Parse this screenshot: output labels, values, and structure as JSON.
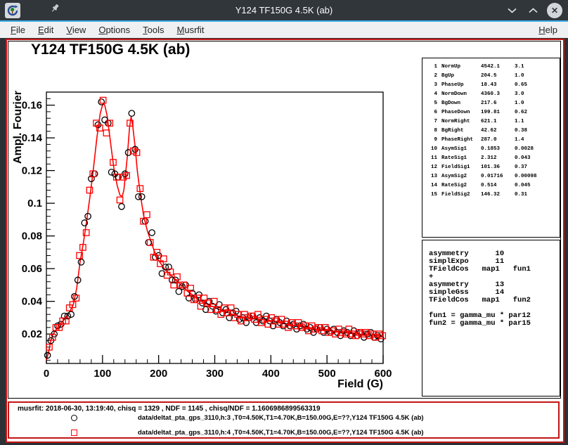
{
  "titlebar": {
    "title": "Y124 TF150G 4.5K (ab)",
    "app_icon": "root-logo-icon",
    "pin_icon": "pin-icon",
    "buttons": {
      "minimize": "v",
      "maximize": "^",
      "close": "✕"
    }
  },
  "menubar": {
    "items": [
      "File",
      "Edit",
      "View",
      "Options",
      "Tools",
      "Musrfit"
    ],
    "help_label": "Help"
  },
  "colors": {
    "pad_highlight": "#c31414",
    "series1": "#000000",
    "series2": "#ff0000",
    "titlebar_bg": "#31363b",
    "menubar_bg": "#eff0f1",
    "accent_line": "#3daee9"
  },
  "param_table": {
    "rows": [
      [
        "1",
        "NormUp",
        "4542.1",
        "3.1"
      ],
      [
        "2",
        "BgUp",
        "204.5",
        "1.0"
      ],
      [
        "3",
        "PhaseUp",
        "18.43",
        "0.65"
      ],
      [
        "4",
        "NormDown",
        "4360.3",
        "3.0"
      ],
      [
        "5",
        "BgDown",
        "217.6",
        "1.0"
      ],
      [
        "6",
        "PhaseDown",
        "199.81",
        "0.62"
      ],
      [
        "7",
        "NormRight",
        "621.1",
        "1.1"
      ],
      [
        "8",
        "BgRight",
        "42.62",
        "0.38"
      ],
      [
        "9",
        "PhaseRight",
        "287.0",
        "1.4"
      ],
      [
        "10",
        "AsymSig1",
        "0.1853",
        "0.0028"
      ],
      [
        "11",
        "RateSig1",
        "2.312",
        "0.043"
      ],
      [
        "12",
        "FieldSig1",
        "101.36",
        "0.37"
      ],
      [
        "13",
        "AsymSig2",
        "0.01716",
        "0.00098"
      ],
      [
        "14",
        "RateSig2",
        "0.514",
        "0.045"
      ],
      [
        "15",
        "FieldSig2",
        "146.32",
        "0.31"
      ]
    ]
  },
  "theory_block": {
    "lines": [
      "asymmetry      10",
      "simplExpo      11",
      "TFieldCos   map1   fun1",
      "+",
      "asymmetry      13",
      "simpleGss      14",
      "TFieldCos   map1   fun2",
      "",
      "fun1 = gamma_mu * par12",
      "fun2 = gamma_mu * par15"
    ]
  },
  "footer": {
    "info": "musrfit: 2018-06-30, 13:19:40, chisq = 1329 , NDF = 1145 , chisq/NDF = 1.1606986899563319",
    "legend": [
      {
        "marker": "circle",
        "color": "#000000",
        "label": "data/deltat_pta_gps_3110,h:3 ,T0=4.50K,T1=4.70K,B=150.00G,E=??,Y124 TF150G 4.5K (ab)"
      },
      {
        "marker": "square",
        "color": "#ff0000",
        "label": "data/deltat_pta_gps_3110,h:4 ,T0=4.50K,T1=4.70K,B=150.00G,E=??,Y124 TF150G 4.5K (ab)"
      }
    ]
  },
  "chart_data": {
    "type": "scatter",
    "title": "Y124 TF150G 4.5K (ab)",
    "xlabel": "Field (G)",
    "ylabel": "Ampl. Fourier",
    "xlim": [
      0,
      600
    ],
    "ylim": [
      0.002,
      0.168
    ],
    "x_ticks": [
      0,
      100,
      200,
      300,
      400,
      500,
      600
    ],
    "x_minor_step": 20,
    "y_ticks": [
      [
        0.02,
        "0.02"
      ],
      [
        0.04,
        "0.04"
      ],
      [
        0.06,
        "0.06"
      ],
      [
        0.08,
        "0.08"
      ],
      [
        0.1,
        "0.1"
      ],
      [
        0.12,
        "0.12"
      ],
      [
        0.14,
        "0.14"
      ],
      [
        0.16,
        "0.16"
      ]
    ],
    "y_minor_step": 0.004,
    "grid": false,
    "legend_position": "footer-pad",
    "fit_curve": [
      [
        0,
        0.004
      ],
      [
        4,
        0.009
      ],
      [
        8,
        0.016
      ],
      [
        12,
        0.02
      ],
      [
        18,
        0.023
      ],
      [
        24,
        0.026
      ],
      [
        30,
        0.028
      ],
      [
        36,
        0.031
      ],
      [
        42,
        0.034
      ],
      [
        48,
        0.038
      ],
      [
        54,
        0.048
      ],
      [
        60,
        0.064
      ],
      [
        66,
        0.076
      ],
      [
        72,
        0.09
      ],
      [
        78,
        0.105
      ],
      [
        84,
        0.122
      ],
      [
        90,
        0.14
      ],
      [
        96,
        0.155
      ],
      [
        100,
        0.16
      ],
      [
        102,
        0.161
      ],
      [
        104,
        0.16
      ],
      [
        108,
        0.154
      ],
      [
        114,
        0.138
      ],
      [
        120,
        0.122
      ],
      [
        126,
        0.111
      ],
      [
        131,
        0.105
      ],
      [
        135,
        0.104
      ],
      [
        138,
        0.108
      ],
      [
        144,
        0.128
      ],
      [
        148,
        0.146
      ],
      [
        151,
        0.153
      ],
      [
        154,
        0.147
      ],
      [
        158,
        0.135
      ],
      [
        162,
        0.12
      ],
      [
        168,
        0.104
      ],
      [
        174,
        0.091
      ],
      [
        180,
        0.083
      ],
      [
        186,
        0.077
      ],
      [
        192,
        0.071
      ],
      [
        198,
        0.066
      ],
      [
        204,
        0.063
      ],
      [
        210,
        0.06
      ],
      [
        216,
        0.058
      ],
      [
        222,
        0.056
      ],
      [
        228,
        0.054
      ],
      [
        234,
        0.052
      ],
      [
        240,
        0.05
      ],
      [
        246,
        0.048
      ],
      [
        252,
        0.046
      ],
      [
        258,
        0.0445
      ],
      [
        264,
        0.043
      ],
      [
        270,
        0.041
      ],
      [
        276,
        0.04
      ],
      [
        282,
        0.039
      ],
      [
        288,
        0.038
      ],
      [
        294,
        0.037
      ],
      [
        300,
        0.0365
      ],
      [
        312,
        0.0345
      ],
      [
        324,
        0.033
      ],
      [
        336,
        0.0315
      ],
      [
        348,
        0.0305
      ],
      [
        360,
        0.03
      ],
      [
        372,
        0.0295
      ],
      [
        384,
        0.029
      ],
      [
        396,
        0.0285
      ],
      [
        408,
        0.0275
      ],
      [
        420,
        0.0265
      ],
      [
        432,
        0.026
      ],
      [
        444,
        0.025
      ],
      [
        456,
        0.0245
      ],
      [
        468,
        0.024
      ],
      [
        480,
        0.023
      ],
      [
        492,
        0.0225
      ],
      [
        504,
        0.022
      ],
      [
        516,
        0.0215
      ],
      [
        528,
        0.021
      ],
      [
        540,
        0.0205
      ],
      [
        552,
        0.02
      ],
      [
        564,
        0.0198
      ],
      [
        576,
        0.0195
      ],
      [
        588,
        0.0192
      ],
      [
        600,
        0.019
      ]
    ],
    "series": [
      {
        "name": "data/deltat_pta_gps_3110,h:3",
        "marker": "circle",
        "color": "#000000",
        "points": [
          [
            2,
            0.007
          ],
          [
            8,
            0.016
          ],
          [
            14,
            0.02
          ],
          [
            20,
            0.025
          ],
          [
            26,
            0.026
          ],
          [
            32,
            0.031
          ],
          [
            38,
            0.031
          ],
          [
            44,
            0.032
          ],
          [
            50,
            0.043
          ],
          [
            56,
            0.053
          ],
          [
            62,
            0.064
          ],
          [
            68,
            0.088
          ],
          [
            74,
            0.092
          ],
          [
            80,
            0.115
          ],
          [
            86,
            0.118
          ],
          [
            92,
            0.148
          ],
          [
            98,
            0.162
          ],
          [
            104,
            0.151
          ],
          [
            110,
            0.149
          ],
          [
            116,
            0.119
          ],
          [
            122,
            0.118
          ],
          [
            128,
            0.116
          ],
          [
            134,
            0.098
          ],
          [
            140,
            0.118
          ],
          [
            146,
            0.131
          ],
          [
            152,
            0.155
          ],
          [
            158,
            0.133
          ],
          [
            164,
            0.104
          ],
          [
            170,
            0.104
          ],
          [
            176,
            0.089
          ],
          [
            182,
            0.076
          ],
          [
            188,
            0.082
          ],
          [
            194,
            0.067
          ],
          [
            200,
            0.068
          ],
          [
            206,
            0.057
          ],
          [
            212,
            0.061
          ],
          [
            218,
            0.061
          ],
          [
            224,
            0.053
          ],
          [
            230,
            0.053
          ],
          [
            236,
            0.046
          ],
          [
            242,
            0.049
          ],
          [
            248,
            0.05
          ],
          [
            254,
            0.042
          ],
          [
            260,
            0.045
          ],
          [
            266,
            0.041
          ],
          [
            272,
            0.044
          ],
          [
            278,
            0.039
          ],
          [
            284,
            0.035
          ],
          [
            290,
            0.04
          ],
          [
            296,
            0.037
          ],
          [
            302,
            0.034
          ],
          [
            308,
            0.038
          ],
          [
            314,
            0.033
          ],
          [
            320,
            0.035
          ],
          [
            326,
            0.03
          ],
          [
            332,
            0.033
          ],
          [
            338,
            0.034
          ],
          [
            344,
            0.029
          ],
          [
            350,
            0.03
          ],
          [
            356,
            0.027
          ],
          [
            362,
            0.03
          ],
          [
            368,
            0.031
          ],
          [
            374,
            0.027
          ],
          [
            380,
            0.03
          ],
          [
            386,
            0.028
          ],
          [
            392,
            0.031
          ],
          [
            398,
            0.028
          ],
          [
            404,
            0.025
          ],
          [
            410,
            0.029
          ],
          [
            416,
            0.027
          ],
          [
            422,
            0.025
          ],
          [
            428,
            0.028
          ],
          [
            434,
            0.025
          ],
          [
            440,
            0.026
          ],
          [
            446,
            0.023
          ],
          [
            452,
            0.025
          ],
          [
            458,
            0.026
          ],
          [
            464,
            0.023
          ],
          [
            470,
            0.024
          ],
          [
            476,
            0.021
          ],
          [
            482,
            0.023
          ],
          [
            488,
            0.024
          ],
          [
            494,
            0.021
          ],
          [
            500,
            0.023
          ],
          [
            506,
            0.021
          ],
          [
            512,
            0.023
          ],
          [
            518,
            0.021
          ],
          [
            524,
            0.019
          ],
          [
            530,
            0.022
          ],
          [
            536,
            0.021
          ],
          [
            542,
            0.019
          ],
          [
            548,
            0.022
          ],
          [
            554,
            0.019
          ],
          [
            560,
            0.021
          ],
          [
            566,
            0.018
          ],
          [
            572,
            0.02
          ],
          [
            578,
            0.021
          ],
          [
            584,
            0.018
          ],
          [
            590,
            0.019
          ],
          [
            596,
            0.017
          ]
        ]
      },
      {
        "name": "data/deltat_pta_gps_3110,h:4",
        "marker": "square",
        "color": "#ff0000",
        "points": [
          [
            5,
            0.012
          ],
          [
            11,
            0.018
          ],
          [
            17,
            0.024
          ],
          [
            23,
            0.024
          ],
          [
            29,
            0.028
          ],
          [
            35,
            0.028
          ],
          [
            41,
            0.036
          ],
          [
            47,
            0.038
          ],
          [
            53,
            0.042
          ],
          [
            59,
            0.068
          ],
          [
            65,
            0.073
          ],
          [
            71,
            0.082
          ],
          [
            77,
            0.108
          ],
          [
            83,
            0.118
          ],
          [
            89,
            0.149
          ],
          [
            95,
            0.146
          ],
          [
            101,
            0.163
          ],
          [
            107,
            0.143
          ],
          [
            113,
            0.149
          ],
          [
            119,
            0.125
          ],
          [
            125,
            0.116
          ],
          [
            131,
            0.102
          ],
          [
            137,
            0.116
          ],
          [
            143,
            0.117
          ],
          [
            149,
            0.149
          ],
          [
            155,
            0.132
          ],
          [
            161,
            0.131
          ],
          [
            167,
            0.109
          ],
          [
            173,
            0.089
          ],
          [
            179,
            0.093
          ],
          [
            185,
            0.076
          ],
          [
            191,
            0.067
          ],
          [
            197,
            0.07
          ],
          [
            203,
            0.063
          ],
          [
            209,
            0.066
          ],
          [
            215,
            0.056
          ],
          [
            221,
            0.058
          ],
          [
            227,
            0.05
          ],
          [
            233,
            0.055
          ],
          [
            239,
            0.05
          ],
          [
            245,
            0.05
          ],
          [
            251,
            0.045
          ],
          [
            257,
            0.048
          ],
          [
            263,
            0.041
          ],
          [
            269,
            0.042
          ],
          [
            275,
            0.037
          ],
          [
            281,
            0.042
          ],
          [
            287,
            0.039
          ],
          [
            293,
            0.035
          ],
          [
            299,
            0.04
          ],
          [
            305,
            0.035
          ],
          [
            311,
            0.032
          ],
          [
            317,
            0.036
          ],
          [
            323,
            0.033
          ],
          [
            329,
            0.036
          ],
          [
            335,
            0.03
          ],
          [
            341,
            0.032
          ],
          [
            347,
            0.028
          ],
          [
            353,
            0.032
          ],
          [
            359,
            0.03
          ],
          [
            365,
            0.031
          ],
          [
            371,
            0.029
          ],
          [
            377,
            0.032
          ],
          [
            383,
            0.027
          ],
          [
            389,
            0.029
          ],
          [
            395,
            0.026
          ],
          [
            401,
            0.03
          ],
          [
            407,
            0.028
          ],
          [
            413,
            0.026
          ],
          [
            419,
            0.029
          ],
          [
            425,
            0.026
          ],
          [
            431,
            0.024
          ],
          [
            437,
            0.027
          ],
          [
            443,
            0.025
          ],
          [
            449,
            0.027
          ],
          [
            455,
            0.024
          ],
          [
            461,
            0.025
          ],
          [
            467,
            0.022
          ],
          [
            473,
            0.025
          ],
          [
            479,
            0.023
          ],
          [
            485,
            0.024
          ],
          [
            491,
            0.022
          ],
          [
            497,
            0.024
          ],
          [
            503,
            0.021
          ],
          [
            509,
            0.022
          ],
          [
            515,
            0.02
          ],
          [
            521,
            0.023
          ],
          [
            527,
            0.021
          ],
          [
            533,
            0.02
          ],
          [
            539,
            0.023
          ],
          [
            545,
            0.02
          ],
          [
            551,
            0.019
          ],
          [
            557,
            0.021
          ],
          [
            563,
            0.02
          ],
          [
            569,
            0.021
          ],
          [
            575,
            0.019
          ],
          [
            581,
            0.02
          ],
          [
            587,
            0.018
          ],
          [
            593,
            0.02
          ],
          [
            599,
            0.019
          ]
        ]
      }
    ]
  }
}
